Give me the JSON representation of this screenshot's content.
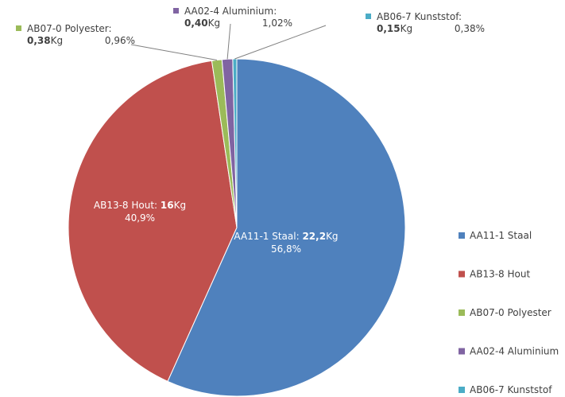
{
  "chart_data": {
    "type": "pie",
    "title": "",
    "slices": [
      {
        "name": "AA11-1 Staal",
        "value": 22.2,
        "value_text": "22,2",
        "unit": "Kg",
        "percent": 56.8,
        "percent_text": "56,8%",
        "color": "#4f81bd"
      },
      {
        "name": "AB13-8 Hout",
        "value": 16,
        "value_text": "16",
        "unit": "Kg",
        "percent": 40.9,
        "percent_text": "40,9%",
        "color": "#c0504d"
      },
      {
        "name": "AB07-0 Polyester",
        "value": 0.38,
        "value_text": "0,38",
        "unit": "Kg",
        "percent": 0.96,
        "percent_text": "0,96%",
        "color": "#9bbb59"
      },
      {
        "name": "AA02-4 Aluminium",
        "value": 0.4,
        "value_text": "0,40",
        "unit": "Kg",
        "percent": 1.02,
        "percent_text": "1,02%",
        "color": "#8064a2"
      },
      {
        "name": "AB06-7 Kunststof",
        "value": 0.15,
        "value_text": "0,15",
        "unit": "Kg",
        "percent": 0.38,
        "percent_text": "0,38%",
        "color": "#4bacc6"
      }
    ],
    "legend": {
      "placement": "right",
      "entries": [
        "AA11-1 Staal",
        "AB13-8 Hout",
        "AB07-0 Polyester",
        "AA02-4 Aluminium",
        "AB06-7 Kunststof"
      ]
    }
  }
}
